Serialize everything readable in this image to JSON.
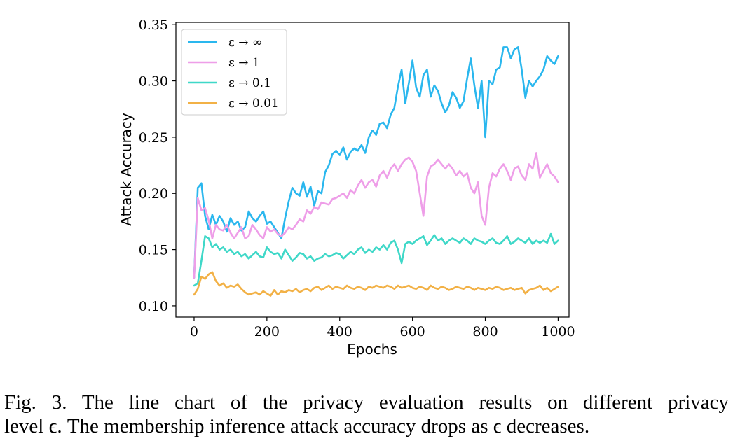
{
  "chart_data": {
    "type": "line",
    "xlabel": "Epochs",
    "ylabel": "Attack Accuracy",
    "xlim": [
      -50,
      1030
    ],
    "ylim": [
      0.09,
      0.352
    ],
    "xticks": [
      0,
      200,
      400,
      600,
      800,
      1000
    ],
    "yticks": [
      0.1,
      0.15,
      0.2,
      0.25,
      0.3,
      0.35
    ],
    "ytick_labels": [
      "0.10",
      "0.15",
      "0.20",
      "0.25",
      "0.30",
      "0.35"
    ],
    "grid": false,
    "legend_position": "top-left",
    "series": [
      {
        "name": "ε → ∞",
        "color": "#2ab7ee",
        "x": [
          0,
          10,
          20,
          30,
          40,
          50,
          60,
          70,
          80,
          90,
          100,
          110,
          120,
          130,
          140,
          150,
          160,
          170,
          180,
          190,
          200,
          210,
          220,
          230,
          240,
          250,
          260,
          270,
          280,
          290,
          300,
          310,
          320,
          330,
          340,
          350,
          360,
          370,
          380,
          390,
          400,
          410,
          420,
          430,
          440,
          450,
          460,
          470,
          480,
          490,
          500,
          510,
          520,
          530,
          540,
          550,
          560,
          570,
          580,
          590,
          600,
          610,
          620,
          630,
          640,
          650,
          660,
          670,
          680,
          690,
          700,
          710,
          720,
          730,
          740,
          750,
          760,
          770,
          780,
          790,
          800,
          810,
          820,
          830,
          840,
          850,
          860,
          870,
          880,
          890,
          900,
          910,
          920,
          930,
          940,
          950,
          960,
          970,
          980,
          990,
          1000
        ],
        "y": [
          0.125,
          0.205,
          0.209,
          0.18,
          0.168,
          0.181,
          0.172,
          0.18,
          0.175,
          0.166,
          0.178,
          0.172,
          0.175,
          0.167,
          0.17,
          0.184,
          0.178,
          0.175,
          0.18,
          0.184,
          0.173,
          0.175,
          0.17,
          0.165,
          0.16,
          0.178,
          0.193,
          0.205,
          0.2,
          0.198,
          0.21,
          0.197,
          0.206,
          0.189,
          0.202,
          0.2,
          0.219,
          0.225,
          0.235,
          0.238,
          0.234,
          0.241,
          0.23,
          0.237,
          0.24,
          0.238,
          0.243,
          0.236,
          0.25,
          0.256,
          0.252,
          0.262,
          0.263,
          0.258,
          0.27,
          0.276,
          0.295,
          0.31,
          0.28,
          0.298,
          0.318,
          0.294,
          0.286,
          0.305,
          0.31,
          0.286,
          0.296,
          0.291,
          0.28,
          0.272,
          0.278,
          0.29,
          0.285,
          0.276,
          0.282,
          0.302,
          0.32,
          0.296,
          0.276,
          0.3,
          0.25,
          0.3,
          0.297,
          0.31,
          0.312,
          0.33,
          0.33,
          0.32,
          0.328,
          0.33,
          0.31,
          0.285,
          0.3,
          0.295,
          0.3,
          0.304,
          0.31,
          0.322,
          0.318,
          0.315,
          0.322
        ]
      },
      {
        "name": "ε → 1",
        "color": "#ee9ee8",
        "x": [
          0,
          10,
          20,
          30,
          40,
          50,
          60,
          70,
          80,
          90,
          100,
          110,
          120,
          130,
          140,
          150,
          160,
          170,
          180,
          190,
          200,
          210,
          220,
          230,
          240,
          250,
          260,
          270,
          280,
          290,
          300,
          310,
          320,
          330,
          340,
          350,
          360,
          370,
          380,
          390,
          400,
          410,
          420,
          430,
          440,
          450,
          460,
          470,
          480,
          490,
          500,
          510,
          520,
          530,
          540,
          550,
          560,
          570,
          580,
          590,
          600,
          610,
          620,
          630,
          640,
          650,
          660,
          670,
          680,
          690,
          700,
          710,
          720,
          730,
          740,
          750,
          760,
          770,
          780,
          790,
          800,
          810,
          820,
          830,
          840,
          850,
          860,
          870,
          880,
          890,
          900,
          910,
          920,
          930,
          940,
          950,
          960,
          970,
          980,
          990,
          1000
        ],
        "y": [
          0.125,
          0.196,
          0.185,
          0.187,
          0.176,
          0.16,
          0.172,
          0.168,
          0.167,
          0.172,
          0.165,
          0.16,
          0.165,
          0.17,
          0.16,
          0.162,
          0.172,
          0.168,
          0.163,
          0.16,
          0.17,
          0.166,
          0.168,
          0.164,
          0.162,
          0.165,
          0.17,
          0.168,
          0.172,
          0.177,
          0.175,
          0.185,
          0.182,
          0.188,
          0.186,
          0.192,
          0.191,
          0.19,
          0.195,
          0.196,
          0.198,
          0.2,
          0.196,
          0.203,
          0.2,
          0.207,
          0.212,
          0.205,
          0.21,
          0.212,
          0.206,
          0.216,
          0.22,
          0.214,
          0.222,
          0.226,
          0.22,
          0.226,
          0.23,
          0.232,
          0.228,
          0.22,
          0.2,
          0.18,
          0.215,
          0.224,
          0.226,
          0.23,
          0.226,
          0.222,
          0.226,
          0.222,
          0.216,
          0.22,
          0.215,
          0.218,
          0.205,
          0.2,
          0.21,
          0.18,
          0.172,
          0.205,
          0.218,
          0.215,
          0.222,
          0.226,
          0.22,
          0.212,
          0.222,
          0.224,
          0.216,
          0.212,
          0.226,
          0.222,
          0.236,
          0.214,
          0.22,
          0.226,
          0.218,
          0.215,
          0.21
        ]
      },
      {
        "name": "ε → 0.1",
        "color": "#3fd8c8",
        "x": [
          0,
          10,
          20,
          30,
          40,
          50,
          60,
          70,
          80,
          90,
          100,
          110,
          120,
          130,
          140,
          150,
          160,
          170,
          180,
          190,
          200,
          210,
          220,
          230,
          240,
          250,
          260,
          270,
          280,
          290,
          300,
          310,
          320,
          330,
          340,
          350,
          360,
          370,
          380,
          390,
          400,
          410,
          420,
          430,
          440,
          450,
          460,
          470,
          480,
          490,
          500,
          510,
          520,
          530,
          540,
          550,
          560,
          570,
          580,
          590,
          600,
          610,
          620,
          630,
          640,
          650,
          660,
          670,
          680,
          690,
          700,
          710,
          720,
          730,
          740,
          750,
          760,
          770,
          780,
          790,
          800,
          810,
          820,
          830,
          840,
          850,
          860,
          870,
          880,
          890,
          900,
          910,
          920,
          930,
          940,
          950,
          960,
          970,
          980,
          990,
          1000
        ],
        "y": [
          0.118,
          0.12,
          0.14,
          0.162,
          0.16,
          0.152,
          0.155,
          0.15,
          0.152,
          0.148,
          0.15,
          0.146,
          0.148,
          0.144,
          0.146,
          0.142,
          0.145,
          0.148,
          0.144,
          0.143,
          0.152,
          0.148,
          0.146,
          0.147,
          0.142,
          0.15,
          0.145,
          0.14,
          0.143,
          0.147,
          0.146,
          0.142,
          0.144,
          0.14,
          0.142,
          0.143,
          0.146,
          0.144,
          0.145,
          0.147,
          0.146,
          0.142,
          0.145,
          0.148,
          0.146,
          0.15,
          0.152,
          0.147,
          0.15,
          0.148,
          0.152,
          0.15,
          0.154,
          0.15,
          0.156,
          0.158,
          0.15,
          0.138,
          0.155,
          0.157,
          0.155,
          0.158,
          0.16,
          0.162,
          0.154,
          0.158,
          0.163,
          0.158,
          0.16,
          0.155,
          0.158,
          0.16,
          0.158,
          0.156,
          0.16,
          0.158,
          0.155,
          0.16,
          0.158,
          0.157,
          0.155,
          0.158,
          0.16,
          0.156,
          0.155,
          0.158,
          0.162,
          0.155,
          0.157,
          0.16,
          0.158,
          0.156,
          0.16,
          0.155,
          0.158,
          0.156,
          0.158,
          0.156,
          0.164,
          0.155,
          0.158
        ]
      },
      {
        "name": "ε → 0.01",
        "color": "#f2b146",
        "x": [
          0,
          10,
          20,
          30,
          40,
          50,
          60,
          70,
          80,
          90,
          100,
          110,
          120,
          130,
          140,
          150,
          160,
          170,
          180,
          190,
          200,
          210,
          220,
          230,
          240,
          250,
          260,
          270,
          280,
          290,
          300,
          310,
          320,
          330,
          340,
          350,
          360,
          370,
          380,
          390,
          400,
          410,
          420,
          430,
          440,
          450,
          460,
          470,
          480,
          490,
          500,
          510,
          520,
          530,
          540,
          550,
          560,
          570,
          580,
          590,
          600,
          610,
          620,
          630,
          640,
          650,
          660,
          670,
          680,
          690,
          700,
          710,
          720,
          730,
          740,
          750,
          760,
          770,
          780,
          790,
          800,
          810,
          820,
          830,
          840,
          850,
          860,
          870,
          880,
          890,
          900,
          910,
          920,
          930,
          940,
          950,
          960,
          970,
          980,
          990,
          1000
        ],
        "y": [
          0.11,
          0.115,
          0.126,
          0.124,
          0.128,
          0.13,
          0.122,
          0.118,
          0.12,
          0.116,
          0.118,
          0.117,
          0.119,
          0.115,
          0.112,
          0.11,
          0.111,
          0.112,
          0.11,
          0.113,
          0.111,
          0.109,
          0.114,
          0.11,
          0.113,
          0.112,
          0.114,
          0.113,
          0.115,
          0.112,
          0.114,
          0.115,
          0.113,
          0.116,
          0.117,
          0.114,
          0.116,
          0.118,
          0.115,
          0.117,
          0.116,
          0.115,
          0.118,
          0.116,
          0.115,
          0.117,
          0.116,
          0.114,
          0.117,
          0.116,
          0.118,
          0.117,
          0.116,
          0.118,
          0.117,
          0.115,
          0.118,
          0.116,
          0.117,
          0.118,
          0.116,
          0.115,
          0.117,
          0.116,
          0.114,
          0.118,
          0.116,
          0.115,
          0.117,
          0.116,
          0.114,
          0.115,
          0.117,
          0.116,
          0.115,
          0.117,
          0.116,
          0.114,
          0.116,
          0.115,
          0.114,
          0.116,
          0.115,
          0.117,
          0.116,
          0.114,
          0.115,
          0.116,
          0.114,
          0.115,
          0.116,
          0.111,
          0.114,
          0.115,
          0.116,
          0.118,
          0.114,
          0.116,
          0.113,
          0.115,
          0.117
        ]
      }
    ]
  },
  "caption": {
    "line1": "Fig. 3.  The line chart of the privacy evaluation results on different privacy",
    "line2": "level ϵ. The membership inference attack accuracy drops as ϵ decreases."
  }
}
